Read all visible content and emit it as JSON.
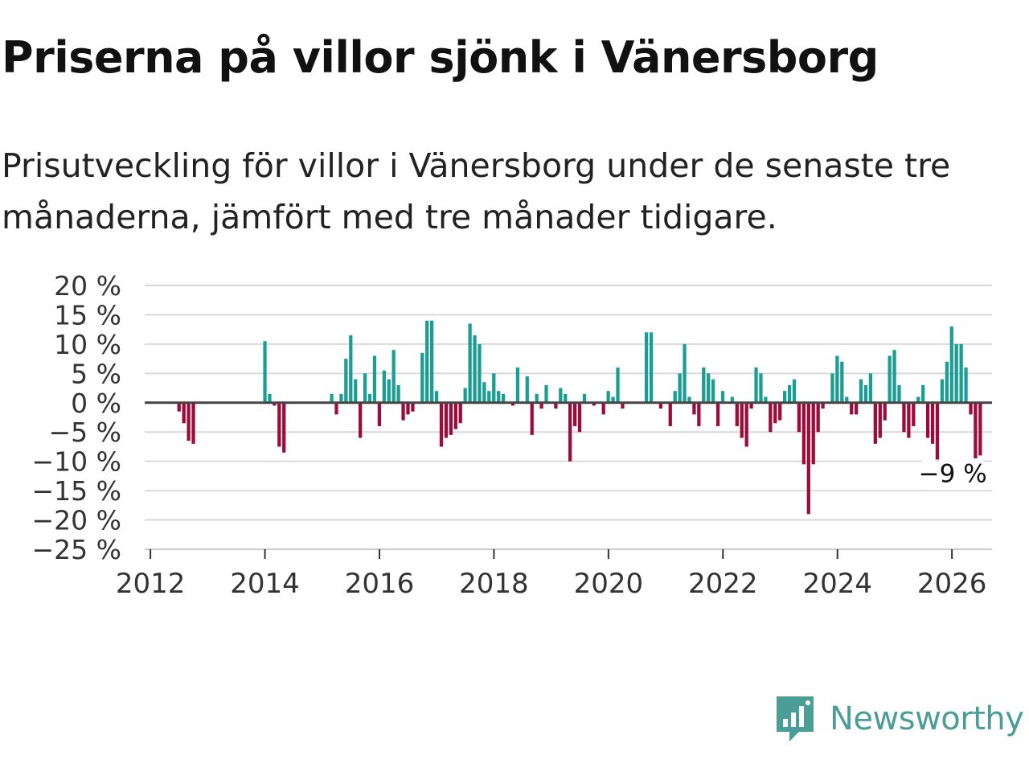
{
  "title": "Priserna på villor sjönk i Vänersborg",
  "subtitle": "Prisutveckling för villor i Vänersborg under de senaste tre månaderna, jämfört med tre månader tidigare.",
  "brand": {
    "name": "Newsworthy",
    "icon": "newsworthy-logo-icon",
    "color": "#4a9e95"
  },
  "colors": {
    "positive": "#1a9e94",
    "negative": "#9e0a3a",
    "grid": "#d9d9d9",
    "zero_line": "#444444"
  },
  "chart_data": {
    "type": "bar",
    "title": "Priserna på villor sjönk i Vänersborg",
    "xlabel": "",
    "ylabel": "",
    "xlim": [
      2011.9,
      2026.7
    ],
    "ylim": [
      -25,
      20
    ],
    "x_ticks": [
      2012,
      2014,
      2016,
      2018,
      2020,
      2022,
      2024,
      2026
    ],
    "x_tick_labels": [
      "2012",
      "2014",
      "2016",
      "2018",
      "2020",
      "2022",
      "2024",
      "2026"
    ],
    "y_ticks": [
      20,
      15,
      10,
      5,
      0,
      -5,
      -10,
      -15,
      -20,
      -25
    ],
    "y_tick_labels": [
      "20 %",
      "15 %",
      "10 %",
      "5 %",
      "0 %",
      "−5 %",
      "−10 %",
      "−15 %",
      "−20 %",
      "−25 %"
    ],
    "grid": true,
    "annotation": {
      "text": "−9 %",
      "x": 2026.0,
      "y": -9
    },
    "x_start": 2012.5,
    "step": 0.0833,
    "values": [
      -1.5,
      -3.5,
      -6.5,
      -7,
      null,
      null,
      null,
      null,
      null,
      null,
      null,
      null,
      null,
      null,
      null,
      null,
      null,
      null,
      10.5,
      1.5,
      -0.5,
      -7.5,
      -8.5,
      null,
      null,
      null,
      null,
      null,
      null,
      null,
      null,
      null,
      1.5,
      -2,
      1.5,
      7.5,
      11.5,
      4,
      -6,
      5,
      1.5,
      8,
      -4,
      5.5,
      4,
      9,
      3,
      -3,
      -2,
      -1.5,
      null,
      8.5,
      14,
      14,
      2,
      -7.5,
      -6,
      -5.5,
      -4.5,
      -3.5,
      2.5,
      13.5,
      11.5,
      10,
      3.5,
      2,
      5,
      2,
      1.5,
      null,
      -0.5,
      6,
      null,
      4.5,
      -5.5,
      1.5,
      -1,
      3,
      null,
      -1,
      2.5,
      1.5,
      -10,
      -4,
      -5,
      1.5,
      null,
      -0.5,
      null,
      -2,
      2,
      1,
      6,
      -1,
      null,
      null,
      null,
      null,
      12,
      12,
      null,
      -1,
      null,
      -4,
      2,
      5,
      10,
      1,
      -2,
      -4,
      6,
      5,
      4,
      -4,
      2,
      null,
      1,
      -4,
      -6,
      -7.5,
      -1,
      6,
      5,
      1,
      -5,
      -3.5,
      -3,
      2,
      3,
      4,
      -5,
      -10.5,
      -19,
      -10.5,
      -5,
      -1,
      null,
      5,
      8,
      7,
      1,
      -2,
      -2,
      4,
      3,
      5,
      -7,
      -6,
      -3,
      8,
      9,
      3,
      -5,
      -6,
      -4,
      1,
      3,
      -6,
      -7,
      -10,
      4,
      7,
      13,
      10,
      10,
      6,
      -2,
      -9.5,
      -9
    ]
  }
}
